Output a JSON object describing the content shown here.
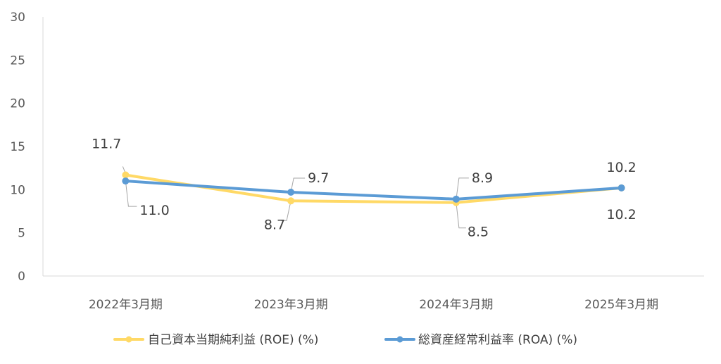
{
  "chart_data": {
    "type": "line",
    "categories": [
      "2022年3月期",
      "2023年3月期",
      "2024年3月期",
      "2025年3月期"
    ],
    "series": [
      {
        "name": "自己資本当期純利益 (ROE) (%)",
        "values": [
          11.7,
          8.7,
          8.5,
          10.2
        ],
        "labels": [
          "11.7",
          "8.7",
          "8.5",
          "10.2"
        ],
        "color": "#FFD966"
      },
      {
        "name": "総資産経常利益率 (ROA) (%)",
        "values": [
          11.0,
          9.7,
          8.9,
          10.2
        ],
        "labels": [
          "11.0",
          "9.7",
          "8.9",
          "10.2"
        ],
        "color": "#5B9BD5"
      }
    ],
    "ylim": [
      0,
      30
    ],
    "yticks": [
      "0",
      "5",
      "10",
      "15",
      "20",
      "25",
      "30"
    ],
    "ytick_values": [
      0,
      5,
      10,
      15,
      20,
      25,
      30
    ],
    "grid": false,
    "legend": "bottom",
    "title": "",
    "xlabel": "",
    "ylabel": ""
  }
}
